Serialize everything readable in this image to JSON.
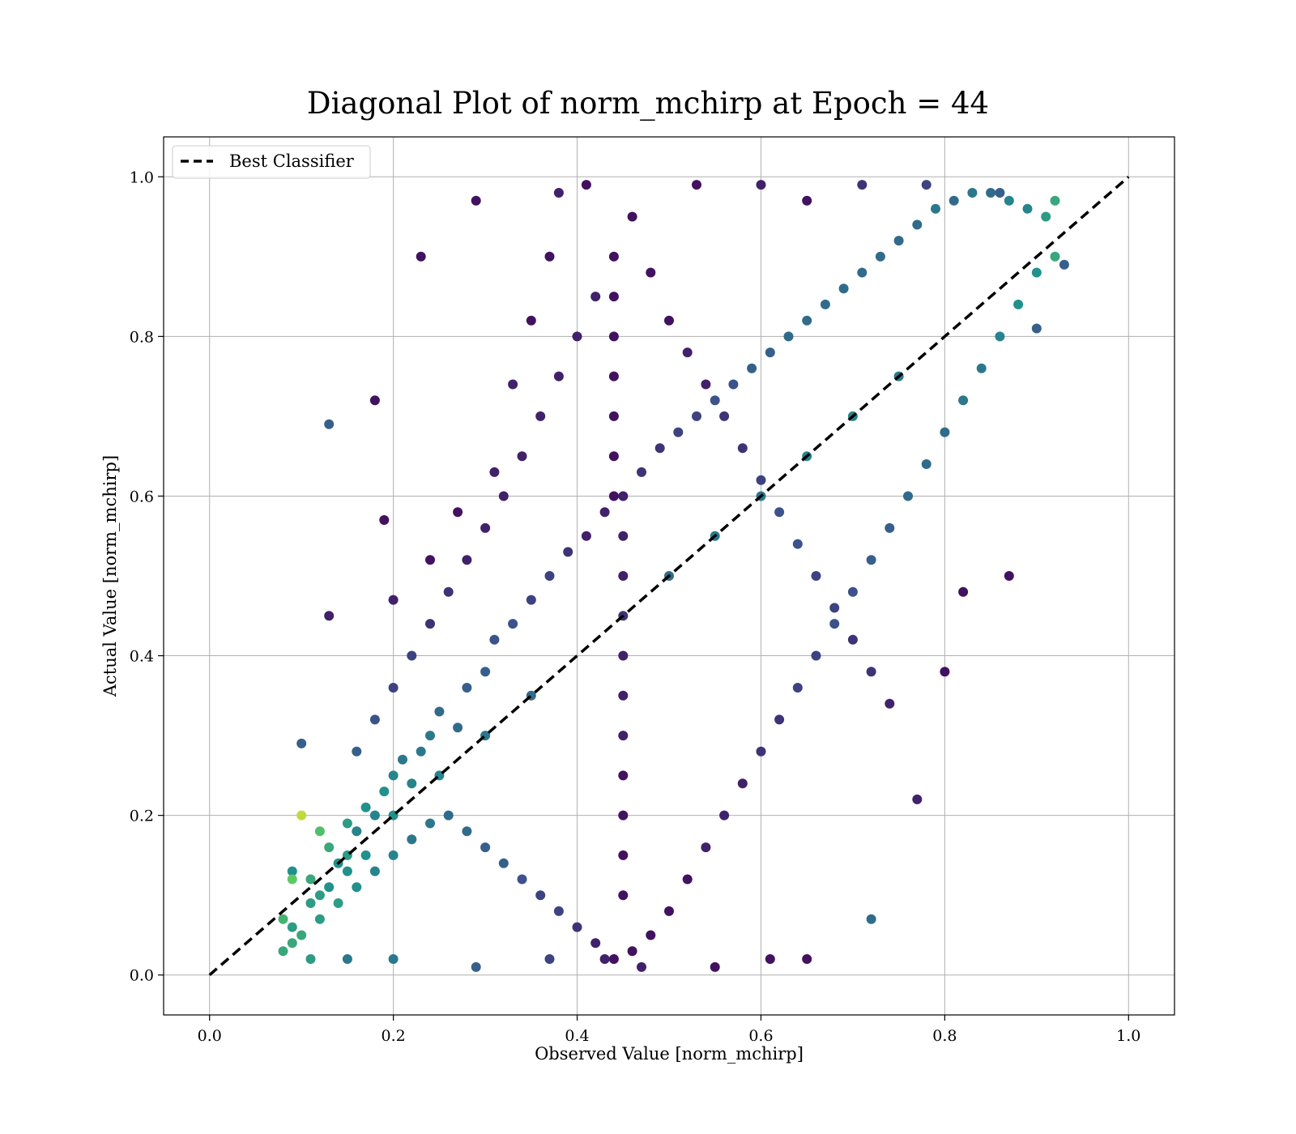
{
  "chart_data": {
    "type": "scatter",
    "title": "Diagonal Plot of norm_mchirp at Epoch = 44",
    "xlabel": "Observed Value [norm_mchirp]",
    "ylabel": "Actual Value [norm_mchirp]",
    "xlim": [
      -0.05,
      1.05
    ],
    "ylim": [
      -0.05,
      1.05
    ],
    "xticks": [
      "0.0",
      "0.2",
      "0.4",
      "0.6",
      "0.8",
      "1.0"
    ],
    "yticks": [
      "0.0",
      "0.2",
      "0.4",
      "0.6",
      "0.8",
      "1.0"
    ],
    "grid": true,
    "legend_position": "top-left",
    "colormap": "viridis",
    "colors": {
      "dark": "#440154",
      "deep_blue": "#3b528b",
      "teal": "#21918c",
      "green": "#5ec962",
      "yellow": "#fde725",
      "line": "#000000"
    },
    "series": [
      {
        "name": "Best Classifier",
        "style": "dashed",
        "x": [
          0.0,
          1.0
        ],
        "y": [
          0.0,
          1.0
        ]
      }
    ],
    "points": [
      [
        0.09,
        0.13,
        0.5
      ],
      [
        0.1,
        0.2,
        0.9
      ],
      [
        0.11,
        0.12,
        0.6
      ],
      [
        0.12,
        0.1,
        0.55
      ],
      [
        0.13,
        0.16,
        0.6
      ],
      [
        0.14,
        0.14,
        0.5
      ],
      [
        0.15,
        0.19,
        0.55
      ],
      [
        0.16,
        0.18,
        0.45
      ],
      [
        0.17,
        0.21,
        0.5
      ],
      [
        0.18,
        0.2,
        0.45
      ],
      [
        0.19,
        0.23,
        0.5
      ],
      [
        0.2,
        0.25,
        0.45
      ],
      [
        0.21,
        0.27,
        0.4
      ],
      [
        0.22,
        0.24,
        0.45
      ],
      [
        0.23,
        0.28,
        0.4
      ],
      [
        0.24,
        0.3,
        0.4
      ],
      [
        0.25,
        0.33,
        0.35
      ],
      [
        0.27,
        0.31,
        0.35
      ],
      [
        0.28,
        0.36,
        0.3
      ],
      [
        0.3,
        0.38,
        0.3
      ],
      [
        0.31,
        0.42,
        0.25
      ],
      [
        0.33,
        0.44,
        0.25
      ],
      [
        0.35,
        0.47,
        0.2
      ],
      [
        0.37,
        0.5,
        0.2
      ],
      [
        0.39,
        0.53,
        0.15
      ],
      [
        0.41,
        0.55,
        0.1
      ],
      [
        0.43,
        0.58,
        0.1
      ],
      [
        0.45,
        0.6,
        0.1
      ],
      [
        0.47,
        0.63,
        0.15
      ],
      [
        0.49,
        0.66,
        0.15
      ],
      [
        0.51,
        0.68,
        0.2
      ],
      [
        0.53,
        0.7,
        0.2
      ],
      [
        0.55,
        0.72,
        0.25
      ],
      [
        0.57,
        0.74,
        0.25
      ],
      [
        0.59,
        0.76,
        0.3
      ],
      [
        0.61,
        0.78,
        0.3
      ],
      [
        0.63,
        0.8,
        0.35
      ],
      [
        0.65,
        0.82,
        0.35
      ],
      [
        0.67,
        0.84,
        0.35
      ],
      [
        0.69,
        0.86,
        0.35
      ],
      [
        0.71,
        0.88,
        0.35
      ],
      [
        0.73,
        0.9,
        0.35
      ],
      [
        0.75,
        0.92,
        0.35
      ],
      [
        0.77,
        0.94,
        0.35
      ],
      [
        0.79,
        0.96,
        0.4
      ],
      [
        0.81,
        0.97,
        0.35
      ],
      [
        0.83,
        0.98,
        0.4
      ],
      [
        0.85,
        0.98,
        0.35
      ],
      [
        0.87,
        0.97,
        0.45
      ],
      [
        0.89,
        0.96,
        0.45
      ],
      [
        0.91,
        0.95,
        0.55
      ],
      [
        0.92,
        0.97,
        0.6
      ],
      [
        0.92,
        0.9,
        0.6
      ],
      [
        0.9,
        0.88,
        0.5
      ],
      [
        0.88,
        0.84,
        0.5
      ],
      [
        0.86,
        0.8,
        0.45
      ],
      [
        0.84,
        0.76,
        0.4
      ],
      [
        0.82,
        0.72,
        0.4
      ],
      [
        0.8,
        0.68,
        0.35
      ],
      [
        0.78,
        0.64,
        0.35
      ],
      [
        0.76,
        0.6,
        0.35
      ],
      [
        0.74,
        0.56,
        0.3
      ],
      [
        0.72,
        0.52,
        0.3
      ],
      [
        0.7,
        0.48,
        0.25
      ],
      [
        0.68,
        0.44,
        0.25
      ],
      [
        0.66,
        0.4,
        0.2
      ],
      [
        0.64,
        0.36,
        0.2
      ],
      [
        0.62,
        0.32,
        0.15
      ],
      [
        0.6,
        0.28,
        0.15
      ],
      [
        0.58,
        0.24,
        0.1
      ],
      [
        0.56,
        0.2,
        0.1
      ],
      [
        0.54,
        0.16,
        0.1
      ],
      [
        0.52,
        0.12,
        0.05
      ],
      [
        0.5,
        0.08,
        0.05
      ],
      [
        0.48,
        0.05,
        0.05
      ],
      [
        0.46,
        0.03,
        0.05
      ],
      [
        0.44,
        0.02,
        0.05
      ],
      [
        0.42,
        0.04,
        0.1
      ],
      [
        0.4,
        0.06,
        0.15
      ],
      [
        0.38,
        0.08,
        0.2
      ],
      [
        0.36,
        0.1,
        0.2
      ],
      [
        0.34,
        0.12,
        0.25
      ],
      [
        0.32,
        0.14,
        0.3
      ],
      [
        0.3,
        0.16,
        0.3
      ],
      [
        0.28,
        0.18,
        0.35
      ],
      [
        0.26,
        0.2,
        0.35
      ],
      [
        0.24,
        0.19,
        0.4
      ],
      [
        0.22,
        0.17,
        0.4
      ],
      [
        0.2,
        0.15,
        0.45
      ],
      [
        0.18,
        0.13,
        0.45
      ],
      [
        0.16,
        0.11,
        0.5
      ],
      [
        0.14,
        0.09,
        0.55
      ],
      [
        0.12,
        0.07,
        0.55
      ],
      [
        0.1,
        0.05,
        0.6
      ],
      [
        0.08,
        0.03,
        0.6
      ],
      [
        0.09,
        0.06,
        0.55
      ],
      [
        0.11,
        0.09,
        0.55
      ],
      [
        0.13,
        0.11,
        0.5
      ],
      [
        0.15,
        0.13,
        0.5
      ],
      [
        0.17,
        0.15,
        0.5
      ],
      [
        0.44,
        0.9,
        0.05
      ],
      [
        0.46,
        0.95,
        0.05
      ],
      [
        0.42,
        0.85,
        0.1
      ],
      [
        0.48,
        0.88,
        0.05
      ],
      [
        0.4,
        0.8,
        0.1
      ],
      [
        0.5,
        0.82,
        0.05
      ],
      [
        0.38,
        0.75,
        0.1
      ],
      [
        0.52,
        0.78,
        0.1
      ],
      [
        0.36,
        0.7,
        0.1
      ],
      [
        0.54,
        0.74,
        0.1
      ],
      [
        0.34,
        0.65,
        0.1
      ],
      [
        0.56,
        0.7,
        0.15
      ],
      [
        0.32,
        0.6,
        0.1
      ],
      [
        0.58,
        0.66,
        0.15
      ],
      [
        0.3,
        0.56,
        0.1
      ],
      [
        0.6,
        0.62,
        0.2
      ],
      [
        0.28,
        0.52,
        0.1
      ],
      [
        0.62,
        0.58,
        0.25
      ],
      [
        0.26,
        0.48,
        0.15
      ],
      [
        0.64,
        0.54,
        0.25
      ],
      [
        0.24,
        0.44,
        0.15
      ],
      [
        0.66,
        0.5,
        0.2
      ],
      [
        0.22,
        0.4,
        0.2
      ],
      [
        0.68,
        0.46,
        0.2
      ],
      [
        0.2,
        0.36,
        0.2
      ],
      [
        0.7,
        0.42,
        0.15
      ],
      [
        0.18,
        0.32,
        0.25
      ],
      [
        0.72,
        0.38,
        0.15
      ],
      [
        0.16,
        0.28,
        0.3
      ],
      [
        0.74,
        0.34,
        0.1
      ],
      [
        0.13,
        0.69,
        0.3
      ],
      [
        0.18,
        0.72,
        0.05
      ],
      [
        0.19,
        0.57,
        0.05
      ],
      [
        0.23,
        0.9,
        0.05
      ],
      [
        0.29,
        0.97,
        0.05
      ],
      [
        0.38,
        0.98,
        0.1
      ],
      [
        0.41,
        0.99,
        0.05
      ],
      [
        0.53,
        0.99,
        0.05
      ],
      [
        0.6,
        0.99,
        0.1
      ],
      [
        0.65,
        0.97,
        0.05
      ],
      [
        0.71,
        0.99,
        0.15
      ],
      [
        0.78,
        0.99,
        0.2
      ],
      [
        0.86,
        0.98,
        0.3
      ],
      [
        0.93,
        0.89,
        0.3
      ],
      [
        0.9,
        0.81,
        0.3
      ],
      [
        0.87,
        0.5,
        0.05
      ],
      [
        0.82,
        0.48,
        0.05
      ],
      [
        0.8,
        0.38,
        0.05
      ],
      [
        0.77,
        0.22,
        0.1
      ],
      [
        0.72,
        0.07,
        0.35
      ],
      [
        0.65,
        0.02,
        0.05
      ],
      [
        0.61,
        0.02,
        0.05
      ],
      [
        0.55,
        0.01,
        0.05
      ],
      [
        0.47,
        0.01,
        0.1
      ],
      [
        0.43,
        0.02,
        0.1
      ],
      [
        0.37,
        0.02,
        0.2
      ],
      [
        0.29,
        0.01,
        0.3
      ],
      [
        0.2,
        0.02,
        0.4
      ],
      [
        0.15,
        0.02,
        0.4
      ],
      [
        0.11,
        0.02,
        0.55
      ],
      [
        0.09,
        0.04,
        0.6
      ],
      [
        0.1,
        0.29,
        0.3
      ],
      [
        0.13,
        0.45,
        0.1
      ],
      [
        0.2,
        0.47,
        0.1
      ],
      [
        0.24,
        0.52,
        0.05
      ],
      [
        0.27,
        0.58,
        0.05
      ],
      [
        0.31,
        0.63,
        0.1
      ],
      [
        0.33,
        0.74,
        0.1
      ],
      [
        0.35,
        0.82,
        0.05
      ],
      [
        0.37,
        0.9,
        0.05
      ],
      [
        0.45,
        0.5,
        0.1
      ],
      [
        0.45,
        0.45,
        0.15
      ],
      [
        0.45,
        0.4,
        0.1
      ],
      [
        0.45,
        0.35,
        0.1
      ],
      [
        0.45,
        0.3,
        0.1
      ],
      [
        0.45,
        0.25,
        0.05
      ],
      [
        0.45,
        0.2,
        0.05
      ],
      [
        0.45,
        0.15,
        0.05
      ],
      [
        0.45,
        0.1,
        0.05
      ],
      [
        0.45,
        0.55,
        0.1
      ],
      [
        0.44,
        0.6,
        0.05
      ],
      [
        0.44,
        0.65,
        0.05
      ],
      [
        0.44,
        0.7,
        0.05
      ],
      [
        0.44,
        0.75,
        0.05
      ],
      [
        0.44,
        0.8,
        0.05
      ],
      [
        0.44,
        0.85,
        0.05
      ],
      [
        0.6,
        0.6,
        0.4
      ],
      [
        0.65,
        0.65,
        0.45
      ],
      [
        0.7,
        0.7,
        0.45
      ],
      [
        0.75,
        0.75,
        0.4
      ],
      [
        0.55,
        0.55,
        0.4
      ],
      [
        0.5,
        0.5,
        0.35
      ],
      [
        0.35,
        0.35,
        0.35
      ],
      [
        0.3,
        0.3,
        0.4
      ],
      [
        0.25,
        0.25,
        0.45
      ],
      [
        0.2,
        0.2,
        0.5
      ],
      [
        0.15,
        0.15,
        0.55
      ],
      [
        0.12,
        0.18,
        0.7
      ],
      [
        0.09,
        0.12,
        0.75
      ],
      [
        0.08,
        0.07,
        0.65
      ]
    ]
  },
  "legend": {
    "label": "Best Classifier"
  }
}
